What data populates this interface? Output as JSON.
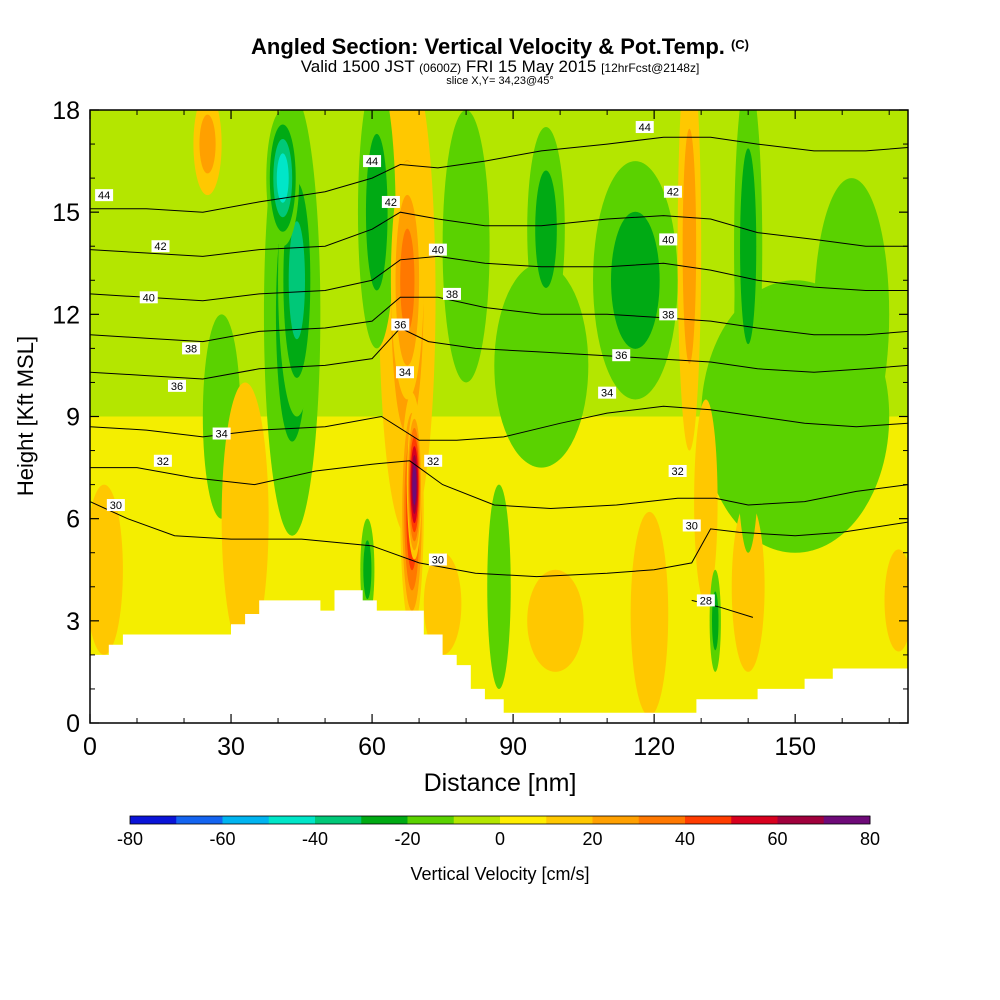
{
  "title": {
    "main": "Angled Section: Vertical Velocity & Pot.Temp.",
    "units": "(C)",
    "valid_a": "Valid 1500 JST",
    "valid_z": "(0600Z)",
    "valid_b": "FRI 15 May 2015",
    "fcst": "[12hrFcst@2148z]",
    "slice": "slice X,Y= 34,23@45°"
  },
  "chart_data": {
    "type": "heatmap",
    "xlabel": "Distance [nm]",
    "ylabel": "Height [Kft MSL]",
    "xlim": [
      0,
      174
    ],
    "ylim": [
      0,
      18
    ],
    "x_ticks": [
      "0",
      "30",
      "60",
      "90",
      "120",
      "150"
    ],
    "y_ticks": [
      "0",
      "3",
      "6",
      "9",
      "12",
      "15",
      "18"
    ],
    "colorbar": {
      "label": "Vertical Velocity [cm/s]",
      "levels": [
        -80,
        -70,
        -60,
        -50,
        -40,
        -30,
        -20,
        -10,
        0,
        10,
        20,
        30,
        40,
        50,
        60,
        70,
        80
      ],
      "tick_labels": [
        "-80",
        "-60",
        "-40",
        "-20",
        "0",
        "20",
        "40",
        "60",
        "80"
      ],
      "colors": [
        "#0a14d8",
        "#1464f0",
        "#00b4f0",
        "#00e6c8",
        "#00c878",
        "#00aa14",
        "#5ad200",
        "#b4e600",
        "#ffee00",
        "#ffc800",
        "#ffa000",
        "#ff7800",
        "#ff3c00",
        "#d8001e",
        "#a0003c",
        "#6e0a78"
      ]
    },
    "terrain_top_kft": [
      [
        0,
        2.0
      ],
      [
        4,
        2.0
      ],
      [
        4,
        2.3
      ],
      [
        7,
        2.3
      ],
      [
        7,
        2.6
      ],
      [
        30,
        2.6
      ],
      [
        30,
        2.9
      ],
      [
        33,
        2.9
      ],
      [
        33,
        3.2
      ],
      [
        36,
        3.2
      ],
      [
        36,
        3.6
      ],
      [
        49,
        3.6
      ],
      [
        49,
        3.3
      ],
      [
        52,
        3.3
      ],
      [
        52,
        3.9
      ],
      [
        58,
        3.9
      ],
      [
        58,
        3.6
      ],
      [
        61,
        3.6
      ],
      [
        61,
        3.3
      ],
      [
        71,
        3.3
      ],
      [
        71,
        2.6
      ],
      [
        75,
        2.6
      ],
      [
        75,
        2.0
      ],
      [
        78,
        2.0
      ],
      [
        78,
        1.7
      ],
      [
        81,
        1.7
      ],
      [
        81,
        1.0
      ],
      [
        84,
        1.0
      ],
      [
        84,
        0.7
      ],
      [
        88,
        0.7
      ],
      [
        88,
        0.3
      ],
      [
        129,
        0.3
      ],
      [
        129,
        0.7
      ],
      [
        142,
        0.7
      ],
      [
        142,
        1.0
      ],
      [
        152,
        1.0
      ],
      [
        152,
        1.3
      ],
      [
        158,
        1.3
      ],
      [
        158,
        1.6
      ],
      [
        174,
        1.6
      ]
    ],
    "w_cells": [
      {
        "x": 69,
        "z": 7.0,
        "w": 75,
        "rx": 1.6,
        "rz": 2.2
      },
      {
        "x": 68.5,
        "z": 6.2,
        "w": 50,
        "rx": 2.5,
        "rz": 3.5
      },
      {
        "x": 67.5,
        "z": 13.0,
        "w": 30,
        "rx": 3.5,
        "rz": 3.5
      },
      {
        "x": 67.5,
        "z": 12.5,
        "w": 22,
        "rx": 6,
        "rz": 7
      },
      {
        "x": 25,
        "z": 17.0,
        "w": 20,
        "rx": 3,
        "rz": 1.5
      },
      {
        "x": 127.5,
        "z": 14.0,
        "w": 25,
        "rx": 2.5,
        "rz": 6
      },
      {
        "x": 131,
        "z": 6.5,
        "w": 18,
        "rx": 2.5,
        "rz": 3
      },
      {
        "x": 140,
        "z": 4.0,
        "w": 18,
        "rx": 3.5,
        "rz": 2.5
      },
      {
        "x": 33,
        "z": 6.0,
        "w": 15,
        "rx": 5,
        "rz": 4
      },
      {
        "x": 3,
        "z": 4.5,
        "w": 13,
        "rx": 4,
        "rz": 2.5
      },
      {
        "x": 99,
        "z": 3.0,
        "w": 15,
        "rx": 6,
        "rz": 1.5
      },
      {
        "x": 119,
        "z": 3.2,
        "w": 15,
        "rx": 4,
        "rz": 3
      },
      {
        "x": 172,
        "z": 3.6,
        "w": 13,
        "rx": 3,
        "rz": 1.5
      },
      {
        "x": 75,
        "z": 3.5,
        "w": 15,
        "rx": 4,
        "rz": 1.5
      },
      {
        "x": 41,
        "z": 16.0,
        "w": -48,
        "rx": 3.5,
        "rz": 2.0
      },
      {
        "x": 44,
        "z": 13.0,
        "w": -38,
        "rx": 4,
        "rz": 4
      },
      {
        "x": 43,
        "z": 12.0,
        "w": -28,
        "rx": 6,
        "rz": 6.5
      },
      {
        "x": 61,
        "z": 15.0,
        "w": -26,
        "rx": 4,
        "rz": 4
      },
      {
        "x": 97,
        "z": 14.5,
        "w": -26,
        "rx": 4,
        "rz": 3
      },
      {
        "x": 116,
        "z": 13.0,
        "w": -26,
        "rx": 9,
        "rz": 3.5
      },
      {
        "x": 140,
        "z": 14.0,
        "w": -28,
        "rx": 3,
        "rz": 5
      },
      {
        "x": 140,
        "z": 11.0,
        "w": -18,
        "rx": 3,
        "rz": 6
      },
      {
        "x": 162,
        "z": 12.0,
        "w": -17,
        "rx": 8,
        "rz": 4
      },
      {
        "x": 80,
        "z": 14.0,
        "w": -17,
        "rx": 5,
        "rz": 4
      },
      {
        "x": 28,
        "z": 9.0,
        "w": -14,
        "rx": 4,
        "rz": 3
      },
      {
        "x": 59,
        "z": 4.5,
        "w": -22,
        "rx": 1.5,
        "rz": 1.5
      },
      {
        "x": 133,
        "z": 3.0,
        "w": -22,
        "rx": 1.2,
        "rz": 1.5
      },
      {
        "x": 96,
        "z": 10.5,
        "w": -13,
        "rx": 10,
        "rz": 3
      },
      {
        "x": 87,
        "z": 4.0,
        "w": -13,
        "rx": 2.5,
        "rz": 3
      },
      {
        "x": 150,
        "z": 9.0,
        "w": -12,
        "rx": 20,
        "rz": 4
      }
    ],
    "theta_contours": [
      {
        "label": "28",
        "pts": [
          [
            128,
            3.6
          ],
          [
            134,
            3.4
          ],
          [
            141,
            3.1
          ]
        ]
      },
      {
        "label": "30",
        "pts": [
          [
            0,
            6.5
          ],
          [
            8,
            6.0
          ],
          [
            18,
            5.5
          ],
          [
            30,
            5.4
          ],
          [
            45,
            5.4
          ],
          [
            60,
            5.2
          ],
          [
            70,
            4.7
          ],
          [
            82,
            4.4
          ],
          [
            95,
            4.3
          ],
          [
            110,
            4.4
          ],
          [
            120,
            4.5
          ],
          [
            128,
            4.7
          ],
          [
            132,
            5.7
          ],
          [
            138,
            5.6
          ],
          [
            150,
            5.5
          ],
          [
            160,
            5.6
          ],
          [
            174,
            5.9
          ]
        ]
      },
      {
        "label": "32",
        "pts": [
          [
            0,
            7.5
          ],
          [
            10,
            7.5
          ],
          [
            22,
            7.2
          ],
          [
            35,
            7.0
          ],
          [
            48,
            7.4
          ],
          [
            60,
            7.6
          ],
          [
            68,
            7.7
          ],
          [
            75,
            7.0
          ],
          [
            86,
            6.4
          ],
          [
            98,
            6.3
          ],
          [
            112,
            6.4
          ],
          [
            125,
            6.6
          ],
          [
            133,
            6.6
          ],
          [
            140,
            6.4
          ],
          [
            152,
            6.5
          ],
          [
            163,
            6.8
          ],
          [
            174,
            7.0
          ]
        ]
      },
      {
        "label": "34",
        "pts": [
          [
            0,
            8.7
          ],
          [
            12,
            8.6
          ],
          [
            24,
            8.4
          ],
          [
            36,
            8.6
          ],
          [
            50,
            8.7
          ],
          [
            62,
            9.0
          ],
          [
            70,
            8.3
          ],
          [
            78,
            8.3
          ],
          [
            88,
            8.4
          ],
          [
            100,
            8.8
          ],
          [
            110,
            9.1
          ],
          [
            122,
            9.3
          ],
          [
            132,
            9.2
          ],
          [
            142,
            9.0
          ],
          [
            152,
            8.8
          ],
          [
            163,
            8.7
          ],
          [
            174,
            8.8
          ]
        ]
      },
      {
        "label": "36",
        "pts": [
          [
            0,
            10.3
          ],
          [
            12,
            10.2
          ],
          [
            24,
            10.1
          ],
          [
            36,
            10.4
          ],
          [
            50,
            10.5
          ],
          [
            60,
            10.7
          ],
          [
            66,
            11.6
          ],
          [
            72,
            11.2
          ],
          [
            82,
            11.0
          ],
          [
            95,
            10.9
          ],
          [
            108,
            10.8
          ],
          [
            120,
            10.7
          ],
          [
            132,
            10.6
          ],
          [
            142,
            10.4
          ],
          [
            154,
            10.3
          ],
          [
            165,
            10.4
          ],
          [
            174,
            10.5
          ]
        ]
      },
      {
        "label": "38",
        "pts": [
          [
            0,
            11.4
          ],
          [
            12,
            11.3
          ],
          [
            24,
            11.2
          ],
          [
            36,
            11.5
          ],
          [
            50,
            11.6
          ],
          [
            60,
            11.8
          ],
          [
            66,
            12.5
          ],
          [
            74,
            12.5
          ],
          [
            84,
            12.2
          ],
          [
            96,
            12.0
          ],
          [
            110,
            12.0
          ],
          [
            122,
            11.9
          ],
          [
            132,
            11.8
          ],
          [
            142,
            11.6
          ],
          [
            154,
            11.4
          ],
          [
            165,
            11.4
          ],
          [
            174,
            11.5
          ]
        ]
      },
      {
        "label": "40",
        "pts": [
          [
            0,
            12.6
          ],
          [
            12,
            12.5
          ],
          [
            24,
            12.4
          ],
          [
            36,
            12.6
          ],
          [
            50,
            12.7
          ],
          [
            60,
            13.0
          ],
          [
            66,
            13.6
          ],
          [
            74,
            13.7
          ],
          [
            84,
            13.5
          ],
          [
            96,
            13.4
          ],
          [
            110,
            13.4
          ],
          [
            122,
            13.5
          ],
          [
            132,
            13.3
          ],
          [
            142,
            13.0
          ],
          [
            154,
            12.8
          ],
          [
            165,
            12.7
          ],
          [
            174,
            12.7
          ]
        ]
      },
      {
        "label": "42",
        "pts": [
          [
            0,
            13.9
          ],
          [
            12,
            13.8
          ],
          [
            24,
            13.7
          ],
          [
            36,
            13.9
          ],
          [
            50,
            14.0
          ],
          [
            60,
            14.5
          ],
          [
            66,
            15.0
          ],
          [
            74,
            14.8
          ],
          [
            84,
            14.6
          ],
          [
            96,
            14.6
          ],
          [
            110,
            14.8
          ],
          [
            122,
            14.9
          ],
          [
            132,
            14.8
          ],
          [
            142,
            14.4
          ],
          [
            154,
            14.2
          ],
          [
            165,
            14.0
          ],
          [
            174,
            14.0
          ]
        ]
      },
      {
        "label": "44",
        "pts": [
          [
            0,
            15.1
          ],
          [
            12,
            15.1
          ],
          [
            24,
            15.0
          ],
          [
            36,
            15.3
          ],
          [
            50,
            15.6
          ],
          [
            60,
            16.0
          ],
          [
            66,
            16.4
          ],
          [
            74,
            16.3
          ],
          [
            84,
            16.5
          ],
          [
            96,
            16.8
          ],
          [
            110,
            17.0
          ],
          [
            122,
            17.2
          ],
          [
            132,
            17.2
          ],
          [
            142,
            17.0
          ],
          [
            154,
            16.8
          ],
          [
            165,
            16.8
          ],
          [
            174,
            16.9
          ]
        ]
      }
    ],
    "theta_labels": [
      {
        "text": "44",
        "x": 3,
        "z": 15.5
      },
      {
        "text": "42",
        "x": 15,
        "z": 14.0
      },
      {
        "text": "40",
        "x": 12.5,
        "z": 12.5
      },
      {
        "text": "38",
        "x": 21.5,
        "z": 11.0
      },
      {
        "text": "36",
        "x": 18.5,
        "z": 9.9
      },
      {
        "text": "34",
        "x": 28,
        "z": 8.5
      },
      {
        "text": "32",
        "x": 15.5,
        "z": 7.7
      },
      {
        "text": "30",
        "x": 5.5,
        "z": 6.4
      },
      {
        "text": "44",
        "x": 60,
        "z": 16.5
      },
      {
        "text": "42",
        "x": 64,
        "z": 15.3
      },
      {
        "text": "40",
        "x": 74,
        "z": 13.9
      },
      {
        "text": "38",
        "x": 77,
        "z": 12.6
      },
      {
        "text": "36",
        "x": 66,
        "z": 11.7
      },
      {
        "text": "34",
        "x": 67,
        "z": 10.3
      },
      {
        "text": "32",
        "x": 73,
        "z": 7.7
      },
      {
        "text": "30",
        "x": 74,
        "z": 4.8
      },
      {
        "text": "44",
        "x": 118,
        "z": 17.5
      },
      {
        "text": "42",
        "x": 124,
        "z": 15.6
      },
      {
        "text": "40",
        "x": 123,
        "z": 14.2
      },
      {
        "text": "38",
        "x": 123,
        "z": 12.0
      },
      {
        "text": "36",
        "x": 113,
        "z": 10.8
      },
      {
        "text": "34",
        "x": 110,
        "z": 9.7
      },
      {
        "text": "32",
        "x": 125,
        "z": 7.4
      },
      {
        "text": "30",
        "x": 128,
        "z": 5.8
      },
      {
        "text": "28",
        "x": 131,
        "z": 3.6
      }
    ]
  }
}
